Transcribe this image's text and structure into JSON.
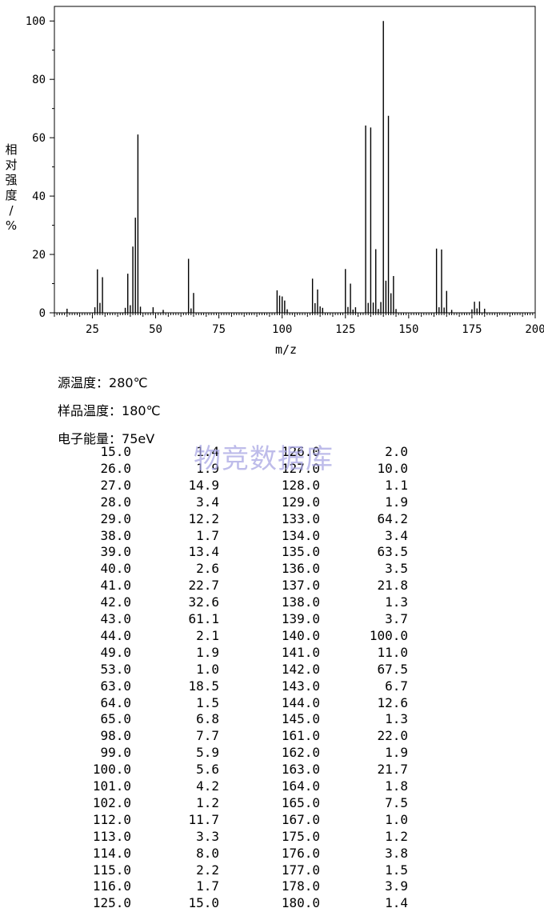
{
  "chart_data": {
    "type": "bar",
    "xlabel": "m/z",
    "ylabel": "相对强度/%",
    "xlim": [
      10,
      200
    ],
    "ylim": [
      0,
      105
    ],
    "x_ticks": [
      "25",
      "50",
      "75",
      "100",
      "125",
      "150",
      "175",
      "200"
    ],
    "y_ticks": [
      "0",
      "20",
      "40",
      "60",
      "80",
      "100"
    ],
    "x_tick_values": [
      25,
      50,
      75,
      100,
      125,
      150,
      175,
      200
    ],
    "y_tick_values": [
      0,
      20,
      40,
      60,
      80,
      100
    ],
    "grid": false,
    "bar_color": "#000000",
    "peaks": [
      {
        "mz": 15.0,
        "intensity": 1.4
      },
      {
        "mz": 26.0,
        "intensity": 1.9
      },
      {
        "mz": 27.0,
        "intensity": 14.9
      },
      {
        "mz": 28.0,
        "intensity": 3.4
      },
      {
        "mz": 29.0,
        "intensity": 12.2
      },
      {
        "mz": 38.0,
        "intensity": 1.7
      },
      {
        "mz": 39.0,
        "intensity": 13.4
      },
      {
        "mz": 40.0,
        "intensity": 2.6
      },
      {
        "mz": 41.0,
        "intensity": 22.7
      },
      {
        "mz": 42.0,
        "intensity": 32.6
      },
      {
        "mz": 43.0,
        "intensity": 61.1
      },
      {
        "mz": 44.0,
        "intensity": 2.1
      },
      {
        "mz": 49.0,
        "intensity": 1.9
      },
      {
        "mz": 53.0,
        "intensity": 1.0
      },
      {
        "mz": 63.0,
        "intensity": 18.5
      },
      {
        "mz": 64.0,
        "intensity": 1.5
      },
      {
        "mz": 65.0,
        "intensity": 6.8
      },
      {
        "mz": 98.0,
        "intensity": 7.7
      },
      {
        "mz": 99.0,
        "intensity": 5.9
      },
      {
        "mz": 100.0,
        "intensity": 5.6
      },
      {
        "mz": 101.0,
        "intensity": 4.2
      },
      {
        "mz": 102.0,
        "intensity": 1.2
      },
      {
        "mz": 112.0,
        "intensity": 11.7
      },
      {
        "mz": 113.0,
        "intensity": 3.3
      },
      {
        "mz": 114.0,
        "intensity": 8.0
      },
      {
        "mz": 115.0,
        "intensity": 2.2
      },
      {
        "mz": 116.0,
        "intensity": 1.7
      },
      {
        "mz": 125.0,
        "intensity": 15.0
      },
      {
        "mz": 126.0,
        "intensity": 2.0
      },
      {
        "mz": 127.0,
        "intensity": 10.0
      },
      {
        "mz": 128.0,
        "intensity": 1.1
      },
      {
        "mz": 129.0,
        "intensity": 1.9
      },
      {
        "mz": 133.0,
        "intensity": 64.2
      },
      {
        "mz": 134.0,
        "intensity": 3.4
      },
      {
        "mz": 135.0,
        "intensity": 63.5
      },
      {
        "mz": 136.0,
        "intensity": 3.5
      },
      {
        "mz": 137.0,
        "intensity": 21.8
      },
      {
        "mz": 138.0,
        "intensity": 1.3
      },
      {
        "mz": 139.0,
        "intensity": 3.7
      },
      {
        "mz": 140.0,
        "intensity": 100.0
      },
      {
        "mz": 141.0,
        "intensity": 11.0
      },
      {
        "mz": 142.0,
        "intensity": 67.5
      },
      {
        "mz": 143.0,
        "intensity": 6.7
      },
      {
        "mz": 144.0,
        "intensity": 12.6
      },
      {
        "mz": 145.0,
        "intensity": 1.3
      },
      {
        "mz": 161.0,
        "intensity": 22.0
      },
      {
        "mz": 162.0,
        "intensity": 1.9
      },
      {
        "mz": 163.0,
        "intensity": 21.7
      },
      {
        "mz": 164.0,
        "intensity": 1.8
      },
      {
        "mz": 165.0,
        "intensity": 7.5
      },
      {
        "mz": 167.0,
        "intensity": 1.0
      },
      {
        "mz": 175.0,
        "intensity": 1.2
      },
      {
        "mz": 176.0,
        "intensity": 3.8
      },
      {
        "mz": 177.0,
        "intensity": 1.5
      },
      {
        "mz": 178.0,
        "intensity": 3.9
      },
      {
        "mz": 180.0,
        "intensity": 1.4
      }
    ]
  },
  "info": {
    "source_temp_label": "源温度",
    "source_temp_value": "280℃",
    "sample_temp_label": "样品温度",
    "sample_temp_value": "180℃",
    "electron_energy_label": "电子能量",
    "electron_energy_value": "75eV",
    "separator": "："
  },
  "watermark": "物竞数据库",
  "table": {
    "rows": [
      [
        "15.0",
        "1.4",
        "126.0",
        "2.0"
      ],
      [
        "26.0",
        "1.9",
        "127.0",
        "10.0"
      ],
      [
        "27.0",
        "14.9",
        "128.0",
        "1.1"
      ],
      [
        "28.0",
        "3.4",
        "129.0",
        "1.9"
      ],
      [
        "29.0",
        "12.2",
        "133.0",
        "64.2"
      ],
      [
        "38.0",
        "1.7",
        "134.0",
        "3.4"
      ],
      [
        "39.0",
        "13.4",
        "135.0",
        "63.5"
      ],
      [
        "40.0",
        "2.6",
        "136.0",
        "3.5"
      ],
      [
        "41.0",
        "22.7",
        "137.0",
        "21.8"
      ],
      [
        "42.0",
        "32.6",
        "138.0",
        "1.3"
      ],
      [
        "43.0",
        "61.1",
        "139.0",
        "3.7"
      ],
      [
        "44.0",
        "2.1",
        "140.0",
        "100.0"
      ],
      [
        "49.0",
        "1.9",
        "141.0",
        "11.0"
      ],
      [
        "53.0",
        "1.0",
        "142.0",
        "67.5"
      ],
      [
        "63.0",
        "18.5",
        "143.0",
        "6.7"
      ],
      [
        "64.0",
        "1.5",
        "144.0",
        "12.6"
      ],
      [
        "65.0",
        "6.8",
        "145.0",
        "1.3"
      ],
      [
        "98.0",
        "7.7",
        "161.0",
        "22.0"
      ],
      [
        "99.0",
        "5.9",
        "162.0",
        "1.9"
      ],
      [
        "100.0",
        "5.6",
        "163.0",
        "21.7"
      ],
      [
        "101.0",
        "4.2",
        "164.0",
        "1.8"
      ],
      [
        "102.0",
        "1.2",
        "165.0",
        "7.5"
      ],
      [
        "112.0",
        "11.7",
        "167.0",
        "1.0"
      ],
      [
        "113.0",
        "3.3",
        "175.0",
        "1.2"
      ],
      [
        "114.0",
        "8.0",
        "176.0",
        "3.8"
      ],
      [
        "115.0",
        "2.2",
        "177.0",
        "1.5"
      ],
      [
        "116.0",
        "1.7",
        "178.0",
        "3.9"
      ],
      [
        "125.0",
        "15.0",
        "180.0",
        "1.4"
      ]
    ]
  }
}
